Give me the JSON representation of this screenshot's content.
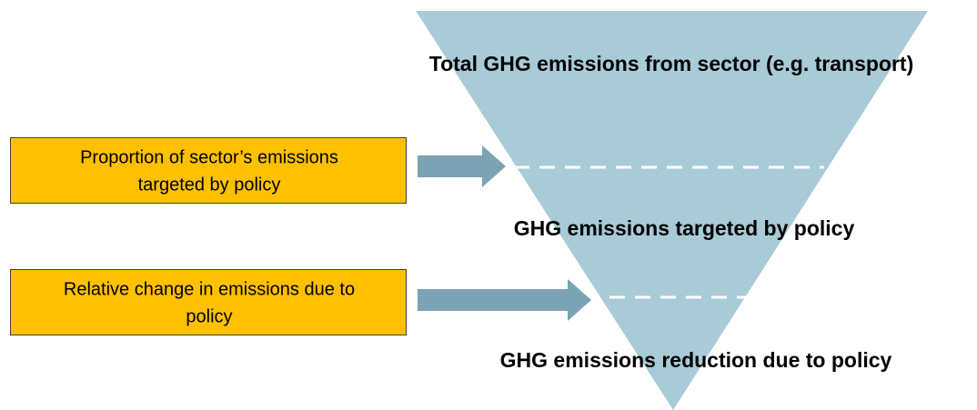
{
  "funnel": {
    "levels": [
      {
        "label": "Total GHG emissions from sector (e.g. transport)"
      },
      {
        "label": "GHG emissions targeted by policy"
      },
      {
        "label": "GHG emissions reduction due to policy"
      }
    ]
  },
  "factors": [
    {
      "lines": [
        "Proportion of sector’s emissions",
        "targeted by policy"
      ]
    },
    {
      "lines": [
        "Relative change in emissions due to",
        "policy"
      ]
    }
  ]
}
